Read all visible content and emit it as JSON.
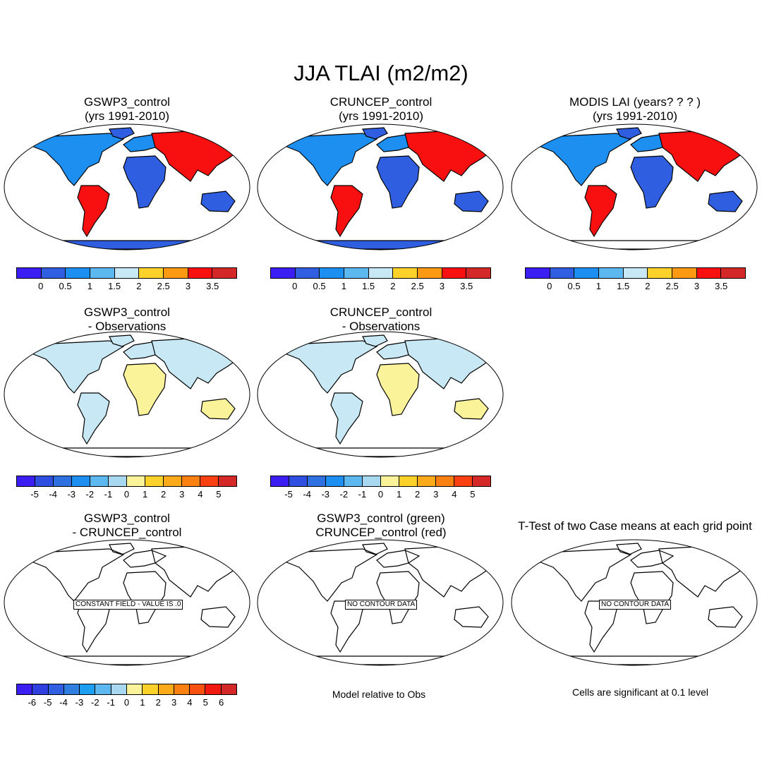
{
  "title": "JJA TLAI (m2/m2)",
  "row1": [
    {
      "title1": "GSWP3_control",
      "title2": "(yrs 1991-2010)",
      "field": "tlai"
    },
    {
      "title1": "CRUNCEP_control",
      "title2": "(yrs 1991-2010)",
      "field": "tlai"
    },
    {
      "title1": "MODIS LAI (years? ? ? )",
      "title2": "(yrs 1991-2010)",
      "field": "tlai_obs"
    }
  ],
  "row2": [
    {
      "title1": "GSWP3_control",
      "title2": "- Observations",
      "field": "diff"
    },
    {
      "title1": "CRUNCEP_control",
      "title2": "- Observations",
      "field": "diff"
    }
  ],
  "row3": [
    {
      "title1": "GSWP3_control",
      "title2": "- CRUNCEP_control",
      "message": "CONSTANT FIELD - VALUE IS .0"
    },
    {
      "title1": "GSWP3_control (green)",
      "title2": "CRUNCEP_control (red)",
      "message": "NO CONTOUR DATA"
    },
    {
      "title1": "T-Test of two Case means at each grid point",
      "title2": "",
      "message": "NO CONTOUR DATA"
    }
  ],
  "colorbars": {
    "tlai": {
      "colors": [
        "#3b1ff2",
        "#2f5fe0",
        "#1c8ff0",
        "#5cb8ee",
        "#c8e8f5",
        "#fcd22a",
        "#fb9a12",
        "#f81010",
        "#d42828"
      ],
      "labels": [
        "0",
        "0.5",
        "1",
        "1.5",
        "2",
        "2.5",
        "3",
        "3.5"
      ]
    },
    "diff": {
      "colors": [
        "#3b1ff2",
        "#2f4fe0",
        "#2f70e0",
        "#1c8ff0",
        "#5cb8ee",
        "#a8d8f0",
        "#fbf39a",
        "#fcd22a",
        "#fcaa1a",
        "#fb8012",
        "#f84010",
        "#d42828"
      ],
      "labels": [
        "-5",
        "-4",
        "-3",
        "-2",
        "-1",
        "0",
        "1",
        "2",
        "3",
        "4",
        "5"
      ]
    },
    "diff6": {
      "colors": [
        "#3b1ff2",
        "#2f3fe0",
        "#2f5fe0",
        "#2f7fe0",
        "#1c9ff0",
        "#5cb8ee",
        "#a8d8f0",
        "#fbf39a",
        "#fcd22a",
        "#fcaa1a",
        "#fb8012",
        "#f85010",
        "#f01a10",
        "#d42828"
      ],
      "labels": [
        "-6",
        "-5",
        "-4",
        "-3",
        "-2",
        "-1",
        "0",
        "1",
        "2",
        "3",
        "4",
        "5",
        "6"
      ]
    }
  },
  "notes": {
    "model_rel": "Model relative to Obs",
    "significance": "Cells are significant at 0.1 level"
  },
  "map_colors": {
    "ocean": "#ffffff",
    "land_low": "#2f5fe0",
    "land_mid": "#1c8ff0",
    "land_high": "#f81010",
    "diff_pos": "#fbf39a",
    "diff_neg": "#c8e8f5",
    "antarctica": "#2f5fe0"
  }
}
